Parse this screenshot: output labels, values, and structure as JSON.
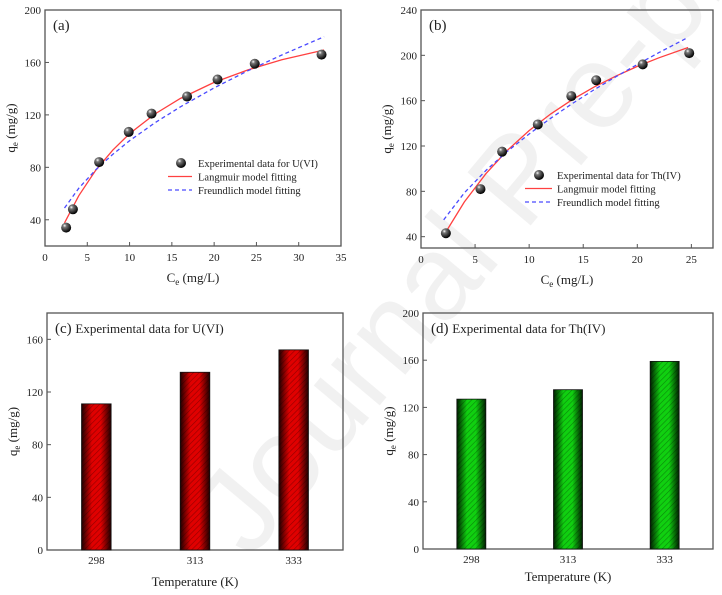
{
  "watermark": "Journal Pre-proof",
  "colors": {
    "langmuir": "#ff4040",
    "freundlich": "#4a4aff",
    "bar_c": "#e00000",
    "bar_d": "#10d010",
    "frame": "#555555"
  },
  "chart_data": [
    {
      "type": "scatter",
      "panel_label": "(a)",
      "xlabel": {
        "base": "C",
        "sub": "e",
        "rest": " (mg/L)"
      },
      "ylabel": {
        "base": "q",
        "sub": "e",
        "rest": " (mg/g)"
      },
      "xlim": [
        0,
        35
      ],
      "ylim": [
        20,
        200
      ],
      "xticks": [
        0,
        5,
        10,
        15,
        20,
        25,
        30,
        35
      ],
      "yticks": [
        40,
        80,
        120,
        160,
        200
      ],
      "legend_placement": "center-right",
      "series": [
        {
          "name": "Experimental data for U(VI)",
          "kind": "points",
          "x": [
            2.5,
            3.3,
            6.4,
            9.9,
            12.6,
            16.8,
            20.4,
            24.8,
            32.7
          ],
          "y": [
            34,
            48,
            84,
            107,
            121,
            134,
            147,
            159,
            166
          ]
        },
        {
          "name": "Langmuir model fitting",
          "kind": "solid",
          "x": [
            2.3,
            4,
            6,
            8,
            10,
            13,
            16,
            20,
            24,
            28,
            33
          ],
          "y": [
            37.6,
            58.4,
            77.7,
            93.1,
            105.7,
            120.7,
            132.5,
            144.8,
            154.3,
            162.0,
            169.5
          ]
        },
        {
          "name": "Freundlich model fitting",
          "kind": "dashed",
          "x": [
            2.3,
            4,
            6,
            8,
            10,
            13,
            16,
            20,
            24,
            28,
            33
          ],
          "y": [
            49.0,
            64.1,
            78.1,
            89.9,
            100.3,
            114.0,
            126.1,
            140.6,
            153.7,
            165.7,
            179.6
          ]
        }
      ]
    },
    {
      "type": "scatter",
      "panel_label": "(b)",
      "xlabel": {
        "base": "C",
        "sub": "e",
        "rest": " (mg/L)"
      },
      "ylabel": {
        "base": "q",
        "sub": "e",
        "rest": " (mg/g)"
      },
      "xlim": [
        0,
        27
      ],
      "ylim": [
        30,
        240
      ],
      "xticks": [
        0,
        5,
        10,
        15,
        20,
        25
      ],
      "yticks": [
        40,
        80,
        120,
        160,
        200,
        240
      ],
      "legend_placement": "center-right",
      "series": [
        {
          "name": "Experimental data for Th(IV)",
          "kind": "points",
          "x": [
            2.3,
            5.5,
            7.5,
            10.8,
            13.9,
            16.2,
            20.5,
            24.8
          ],
          "y": [
            43,
            82,
            115,
            139,
            164,
            178,
            192,
            202
          ]
        },
        {
          "name": "Langmuir model fitting",
          "kind": "solid",
          "x": [
            2.1,
            4,
            6,
            8,
            10,
            12,
            14,
            16,
            18,
            20,
            22,
            24.7
          ],
          "y": [
            41.0,
            70.6,
            95.6,
            116.3,
            133.6,
            148.3,
            160.9,
            172.0,
            181.6,
            190.2,
            197.8,
            206.9
          ]
        },
        {
          "name": "Freundlich model fitting",
          "kind": "dashed",
          "x": [
            2.1,
            4,
            6,
            8,
            10,
            12,
            14,
            16,
            18,
            20,
            22,
            24.7
          ],
          "y": [
            54.9,
            78.6,
            98.4,
            115.4,
            130.6,
            144.5,
            157.5,
            169.6,
            181.1,
            191.9,
            202.4,
            215.8
          ]
        }
      ]
    },
    {
      "type": "bar",
      "panel_label": "(c)",
      "title": "Experimental data for U(VI)",
      "xlabel": {
        "base": "Temperature (K)",
        "sub": "",
        "rest": ""
      },
      "ylabel": {
        "base": "q",
        "sub": "e",
        "rest": " (mg/g)"
      },
      "categories": [
        "298",
        "313",
        "333"
      ],
      "values": [
        111,
        135,
        152
      ],
      "ylim": [
        0,
        180
      ],
      "yticks": [
        0,
        40,
        80,
        120,
        160
      ]
    },
    {
      "type": "bar",
      "panel_label": "(d)",
      "title": "Experimental data for Th(IV)",
      "xlabel": {
        "base": "Temperature (K)",
        "sub": "",
        "rest": ""
      },
      "ylabel": {
        "base": "q",
        "sub": "e",
        "rest": " (mg/g)"
      },
      "categories": [
        "298",
        "313",
        "333"
      ],
      "values": [
        127,
        135,
        159
      ],
      "ylim": [
        0,
        200
      ],
      "yticks": [
        0,
        40,
        80,
        120,
        160,
        200
      ]
    }
  ]
}
